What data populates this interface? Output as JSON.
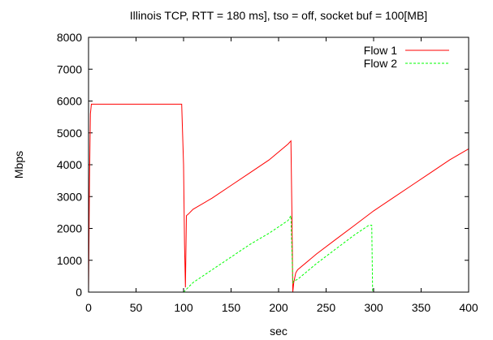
{
  "chart_data": {
    "type": "line",
    "title": "Illinois TCP, RTT = 180 ms], tso = off, socket buf = 100[MB]",
    "xlabel": "sec",
    "ylabel": "Mbps",
    "xlim": [
      0,
      400
    ],
    "ylim": [
      0,
      8000
    ],
    "xticks": [
      0,
      50,
      100,
      150,
      200,
      250,
      300,
      350,
      400
    ],
    "yticks": [
      0,
      1000,
      2000,
      3000,
      4000,
      5000,
      6000,
      7000,
      8000
    ],
    "grid": false,
    "legend": "top-right",
    "series": [
      {
        "name": "Flow 1",
        "color": "#ff0000",
        "dash": "solid",
        "x": [
          0,
          1,
          2,
          3,
          5,
          10,
          20,
          30,
          40,
          50,
          60,
          70,
          80,
          90,
          98,
          100,
          101,
          102,
          103,
          105,
          110,
          130,
          150,
          170,
          190,
          210,
          213,
          214,
          215,
          216,
          218,
          220,
          240,
          260,
          280,
          300,
          320,
          340,
          360,
          380,
          400
        ],
        "y": [
          0,
          3500,
          5600,
          5900,
          5900,
          5900,
          5900,
          5900,
          5900,
          5900,
          5900,
          5900,
          5900,
          5900,
          5900,
          4000,
          1500,
          150,
          2400,
          2450,
          2600,
          2950,
          3350,
          3750,
          4150,
          4650,
          4750,
          2500,
          0,
          300,
          600,
          700,
          1200,
          1650,
          2100,
          2550,
          2950,
          3350,
          3750,
          4150,
          4500
        ]
      },
      {
        "name": "Flow 2",
        "color": "#00ff00",
        "dash": "dashed",
        "x": [
          100,
          101,
          110,
          130,
          150,
          170,
          190,
          210,
          213,
          214,
          215,
          216,
          220,
          240,
          260,
          280,
          295,
          298,
          299
        ],
        "y": [
          0,
          30,
          300,
          700,
          1100,
          1500,
          1850,
          2250,
          2400,
          1300,
          300,
          350,
          400,
          900,
          1350,
          1800,
          2100,
          2100,
          0
        ]
      }
    ]
  }
}
